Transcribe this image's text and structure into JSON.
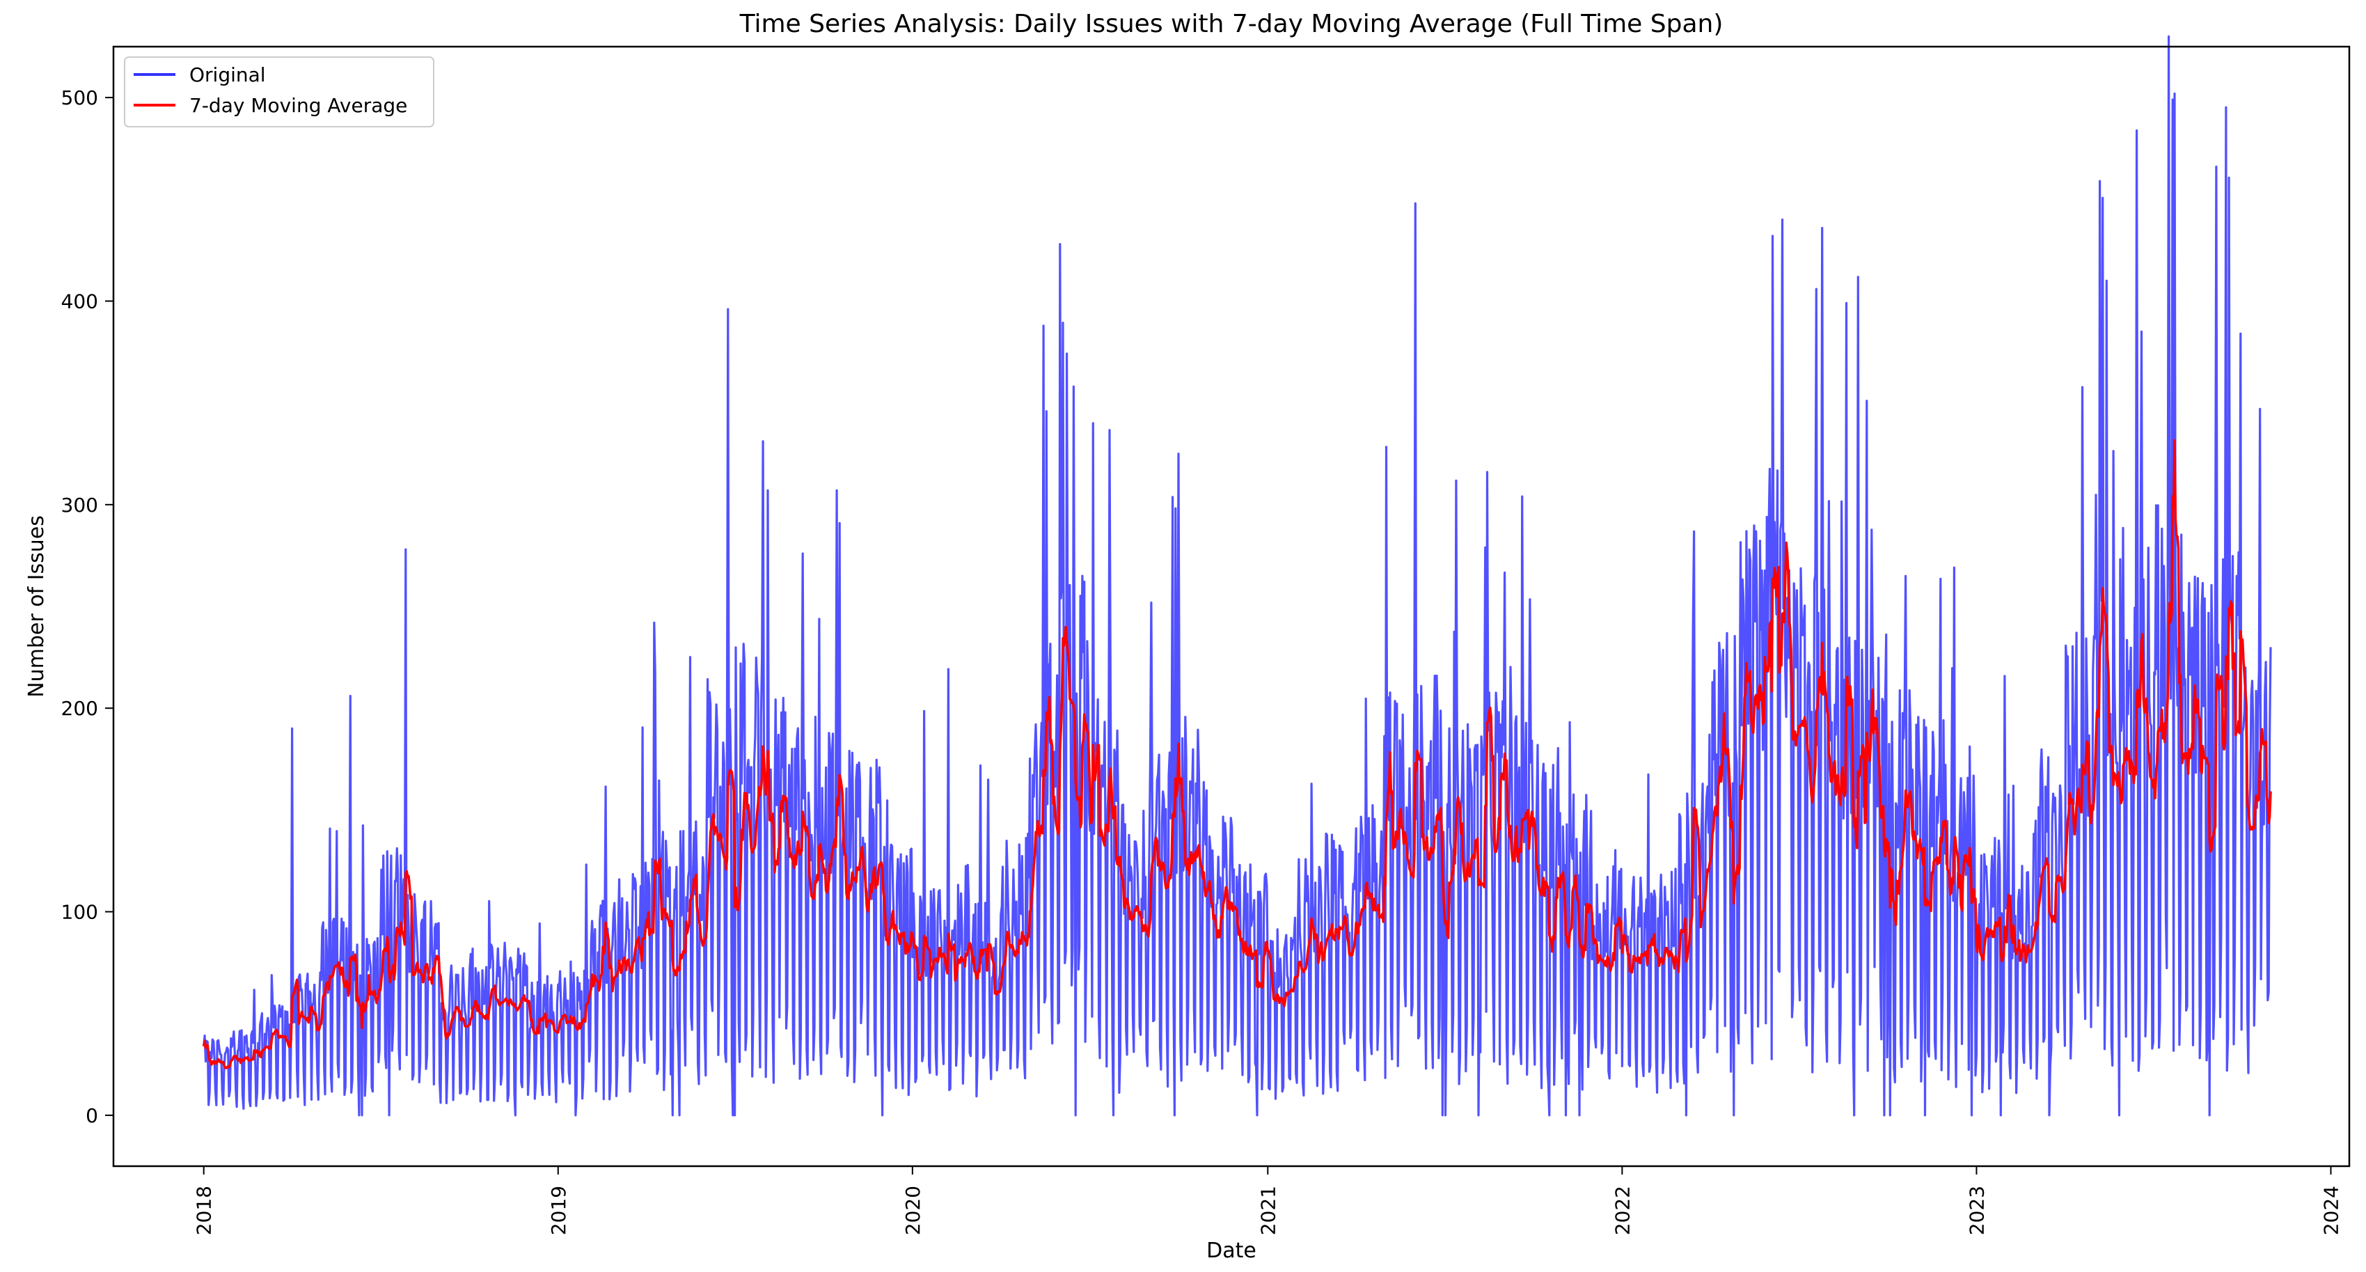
{
  "chart_data": {
    "type": "line",
    "title": "Time Series Analysis: Daily Issues with 7-day Moving Average (Full Time Span)",
    "xlabel": "Date",
    "ylabel": "Number of Issues",
    "x_range": [
      "2017-09-30",
      "2024-01-20"
    ],
    "ylim": [
      -25,
      525
    ],
    "x_ticks": [
      "2018",
      "2019",
      "2020",
      "2021",
      "2022",
      "2023",
      "2024"
    ],
    "y_ticks": [
      0,
      100,
      200,
      300,
      400,
      500
    ],
    "grid": false,
    "legend_position": "upper-left",
    "data_start": "2018-01-01",
    "data_end": "2023-10-31",
    "series": [
      {
        "name": "Original",
        "color": "#3333ff",
        "opacity": 0.85,
        "kind": "daily",
        "monthly_level": [
          {
            "month": "2018-01",
            "level": 28
          },
          {
            "month": "2018-02",
            "level": 32
          },
          {
            "month": "2018-03",
            "level": 40
          },
          {
            "month": "2018-04",
            "level": 50
          },
          {
            "month": "2018-05",
            "level": 70
          },
          {
            "month": "2018-06",
            "level": 65
          },
          {
            "month": "2018-07",
            "level": 95
          },
          {
            "month": "2018-08",
            "level": 80
          },
          {
            "month": "2018-09",
            "level": 55
          },
          {
            "month": "2018-10",
            "level": 60
          },
          {
            "month": "2018-11",
            "level": 62
          },
          {
            "month": "2018-12",
            "level": 50
          },
          {
            "month": "2019-01",
            "level": 55
          },
          {
            "month": "2019-02",
            "level": 75
          },
          {
            "month": "2019-03",
            "level": 85
          },
          {
            "month": "2019-04",
            "level": 100
          },
          {
            "month": "2019-05",
            "level": 110
          },
          {
            "month": "2019-06",
            "level": 155
          },
          {
            "month": "2019-07",
            "level": 170
          },
          {
            "month": "2019-08",
            "level": 150
          },
          {
            "month": "2019-09",
            "level": 140
          },
          {
            "month": "2019-10",
            "level": 140
          },
          {
            "month": "2019-11",
            "level": 125
          },
          {
            "month": "2019-12",
            "level": 95
          },
          {
            "month": "2020-01",
            "level": 80
          },
          {
            "month": "2020-02",
            "level": 88
          },
          {
            "month": "2020-03",
            "level": 75
          },
          {
            "month": "2020-04",
            "level": 100
          },
          {
            "month": "2020-05",
            "level": 170
          },
          {
            "month": "2020-06",
            "level": 190
          },
          {
            "month": "2020-07",
            "level": 150
          },
          {
            "month": "2020-08",
            "level": 110
          },
          {
            "month": "2020-09",
            "level": 130
          },
          {
            "month": "2020-10",
            "level": 140
          },
          {
            "month": "2020-11",
            "level": 110
          },
          {
            "month": "2020-12",
            "level": 90
          },
          {
            "month": "2021-01",
            "level": 70
          },
          {
            "month": "2021-02",
            "level": 90
          },
          {
            "month": "2021-03",
            "level": 100
          },
          {
            "month": "2021-04",
            "level": 110
          },
          {
            "month": "2021-05",
            "level": 150
          },
          {
            "month": "2021-06",
            "level": 160
          },
          {
            "month": "2021-07",
            "level": 140
          },
          {
            "month": "2021-08",
            "level": 150
          },
          {
            "month": "2021-09",
            "level": 140
          },
          {
            "month": "2021-10",
            "level": 130
          },
          {
            "month": "2021-11",
            "level": 115
          },
          {
            "month": "2021-12",
            "level": 90
          },
          {
            "month": "2022-01",
            "level": 85
          },
          {
            "month": "2022-02",
            "level": 90
          },
          {
            "month": "2022-03",
            "level": 120
          },
          {
            "month": "2022-04",
            "level": 170
          },
          {
            "month": "2022-05",
            "level": 210
          },
          {
            "month": "2022-06",
            "level": 230
          },
          {
            "month": "2022-07",
            "level": 195
          },
          {
            "month": "2022-08",
            "level": 170
          },
          {
            "month": "2022-09",
            "level": 170
          },
          {
            "month": "2022-10",
            "level": 150
          },
          {
            "month": "2022-11",
            "level": 140
          },
          {
            "month": "2022-12",
            "level": 120
          },
          {
            "month": "2023-01",
            "level": 100
          },
          {
            "month": "2023-02",
            "level": 90
          },
          {
            "month": "2023-03",
            "level": 130
          },
          {
            "month": "2023-04",
            "level": 170
          },
          {
            "month": "2023-05",
            "level": 200
          },
          {
            "month": "2023-06",
            "level": 210
          },
          {
            "month": "2023-07",
            "level": 220
          },
          {
            "month": "2023-08",
            "level": 190
          },
          {
            "month": "2023-09",
            "level": 200
          },
          {
            "month": "2023-10",
            "level": 165
          }
        ],
        "peaks": [
          {
            "date": "2018-04-02",
            "value": 190
          },
          {
            "date": "2018-06-01",
            "value": 206
          },
          {
            "date": "2018-07-28",
            "value": 278
          },
          {
            "date": "2019-04-10",
            "value": 242
          },
          {
            "date": "2019-06-25",
            "value": 396
          },
          {
            "date": "2019-08-05",
            "value": 307
          },
          {
            "date": "2019-10-15",
            "value": 307
          },
          {
            "date": "2020-06-01",
            "value": 428
          },
          {
            "date": "2020-06-15",
            "value": 358
          },
          {
            "date": "2020-07-05",
            "value": 340
          },
          {
            "date": "2020-10-01",
            "value": 325
          },
          {
            "date": "2021-06-02",
            "value": 448
          },
          {
            "date": "2021-08-15",
            "value": 316
          },
          {
            "date": "2021-09-20",
            "value": 304
          },
          {
            "date": "2022-06-05",
            "value": 432
          },
          {
            "date": "2022-06-15",
            "value": 440
          },
          {
            "date": "2022-08-20",
            "value": 399
          },
          {
            "date": "2022-09-10",
            "value": 351
          },
          {
            "date": "2023-05-15",
            "value": 410
          },
          {
            "date": "2023-06-20",
            "value": 385
          },
          {
            "date": "2023-07-22",
            "value": 499
          },
          {
            "date": "2023-09-05",
            "value": 466
          },
          {
            "date": "2023-09-30",
            "value": 384
          },
          {
            "date": "2023-10-20",
            "value": 347
          }
        ]
      },
      {
        "name": "7-day Moving Average",
        "color": "#ff0000",
        "kind": "moving_average",
        "window": 7
      }
    ]
  }
}
